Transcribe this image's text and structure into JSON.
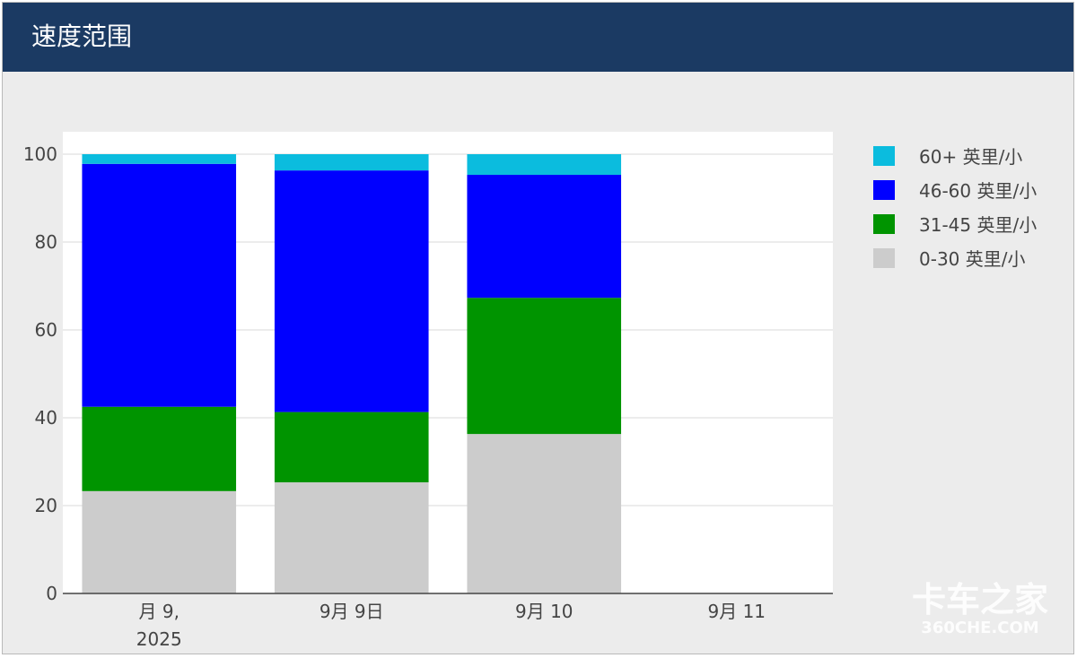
{
  "panel": {
    "title": "速度范围",
    "header_color": "#1b3a63"
  },
  "watermark": {
    "line1": "卡车之家",
    "line2": "360CHE.COM"
  },
  "chart_data": {
    "type": "bar",
    "stacked": true,
    "categories": [
      "月 9,\n2025",
      "9月 9日",
      "9月 10",
      "9月 11"
    ],
    "tick_labels": [
      [
        "月 9,",
        "2025"
      ],
      [
        "9月 9日"
      ],
      [
        "9月 10"
      ],
      [
        "9月 11"
      ]
    ],
    "y_ticks": [
      "0",
      "20",
      "40",
      "60",
      "80",
      "100"
    ],
    "ylim": [
      0,
      100
    ],
    "grid": true,
    "legend_position": "right",
    "series": [
      {
        "name": "0-30 英里/小",
        "color": "#cccccc",
        "values": [
          23.3,
          25.3,
          36.3,
          0
        ]
      },
      {
        "name": "31-45 英里/小",
        "color": "#009400",
        "values": [
          19.2,
          16.0,
          31.0,
          0
        ]
      },
      {
        "name": "46-60 英里/小",
        "color": "#0000ff",
        "values": [
          55.3,
          55.0,
          28.0,
          0
        ]
      },
      {
        "name": "60+ 英里/小",
        "color": "#0bbcde",
        "values": [
          2.2,
          3.7,
          4.7,
          0
        ]
      }
    ]
  }
}
